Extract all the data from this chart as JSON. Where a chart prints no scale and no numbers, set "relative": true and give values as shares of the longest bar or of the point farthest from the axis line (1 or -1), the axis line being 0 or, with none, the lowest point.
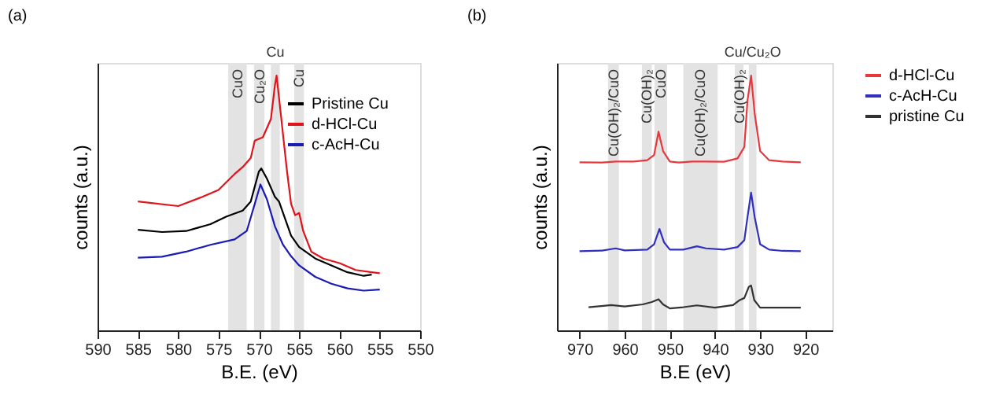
{
  "chart_data": [
    {
      "type": "line",
      "title": "(a)",
      "xlabel": "B.E. (eV)",
      "ylabel": "counts (a.u.)",
      "relative": true,
      "xlim": [
        590,
        550
      ],
      "xticks": [
        590,
        585,
        580,
        575,
        570,
        565,
        560,
        555,
        550
      ],
      "legend": "top right",
      "bands": [
        {
          "axis": "x",
          "from": 573.8,
          "to": 571.5,
          "label": "CuO",
          "color": "#e3e3e3"
        },
        {
          "axis": "x",
          "from": 570.6,
          "to": 569.3,
          "label": "Cu₂O",
          "color": "#e3e3e3"
        },
        {
          "axis": "x",
          "from": 568.5,
          "to": 567.4,
          "label": "Cu",
          "color": "#e3e3e3"
        },
        {
          "axis": "x",
          "from": 565.6,
          "to": 564.4,
          "label": "Cu",
          "color": "#e3e3e3"
        }
      ],
      "series": [
        {
          "name": "Pristine Cu",
          "color": "#000000",
          "x": [
            585,
            582,
            579,
            576,
            574,
            572,
            571,
            570,
            569.7,
            569,
            568,
            567.5,
            567,
            566,
            565,
            563,
            561,
            559,
            557,
            556
          ],
          "values": [
            0.395,
            0.386,
            0.39,
            0.417,
            0.447,
            0.47,
            0.506,
            0.623,
            0.636,
            0.596,
            0.524,
            0.506,
            0.461,
            0.372,
            0.327,
            0.282,
            0.255,
            0.228,
            0.214,
            0.219
          ]
        },
        {
          "name": "d-HCl-Cu",
          "color": "#e0141b",
          "x": [
            585,
            580,
            577,
            575,
            573,
            572,
            571,
            570.5,
            569.5,
            568.5,
            568,
            567.8,
            567.3,
            566.5,
            566,
            565.5,
            565,
            564.5,
            563.5,
            562,
            560,
            558,
            556,
            555
          ],
          "values": [
            0.506,
            0.488,
            0.524,
            0.551,
            0.614,
            0.641,
            0.677,
            0.745,
            0.758,
            0.83,
            0.964,
            1.0,
            0.856,
            0.623,
            0.497,
            0.452,
            0.461,
            0.39,
            0.309,
            0.282,
            0.264,
            0.237,
            0.228,
            0.224
          ]
        },
        {
          "name": "c-AcH-Cu",
          "color": "#1a1ab4",
          "x": [
            585,
            582,
            579,
            576,
            573,
            571.5,
            570.5,
            569.8,
            569,
            568,
            567,
            566,
            565,
            563,
            561,
            559,
            557,
            555
          ],
          "values": [
            0.285,
            0.289,
            0.309,
            0.336,
            0.357,
            0.39,
            0.497,
            0.573,
            0.515,
            0.408,
            0.336,
            0.291,
            0.255,
            0.21,
            0.183,
            0.165,
            0.156,
            0.16
          ]
        }
      ]
    },
    {
      "type": "line",
      "title": "(b)",
      "xlabel": "B.E (eV)",
      "ylabel": "counts (a.u.)",
      "relative": true,
      "xlim": [
        975,
        914
      ],
      "xticks": [
        970,
        960,
        950,
        940,
        930,
        920
      ],
      "legend": "right",
      "bands": [
        {
          "axis": "x",
          "from": 963.7,
          "to": 961.3,
          "label": "Cu(OH)₂/CuO",
          "color": "#e3e3e3"
        },
        {
          "axis": "x",
          "from": 956.2,
          "to": 954.0,
          "label": "Cu(OH)₂",
          "color": "#e3e3e3"
        },
        {
          "axis": "x",
          "from": 953.4,
          "to": 950.6,
          "label": "CuO",
          "color": "#e3e3e3"
        },
        {
          "axis": "x",
          "from": 947.0,
          "to": 939.4,
          "label": "Cu(OH)₂/CuO",
          "color": "#e3e3e3"
        },
        {
          "axis": "x",
          "from": 935.6,
          "to": 933.7,
          "label": "Cu(OH)₂",
          "color": "#e3e3e3"
        },
        {
          "axis": "x",
          "from": 932.5,
          "to": 930.8,
          "label": "Cu/Cu₂O",
          "color": "#e3e3e3"
        }
      ],
      "series": [
        {
          "name": "d-HCl-Cu",
          "color": "#e8383d",
          "x": [
            970,
            965,
            962,
            958,
            955,
            953.5,
            952.5,
            951.5,
            950,
            948,
            945,
            942,
            938,
            935,
            933.5,
            932.8,
            932,
            931.2,
            930,
            928,
            925,
            921
          ],
          "values": [
            0.66,
            0.659,
            0.663,
            0.663,
            0.668,
            0.688,
            0.78,
            0.704,
            0.663,
            0.659,
            0.663,
            0.663,
            0.662,
            0.675,
            0.72,
            0.902,
            1.0,
            0.85,
            0.704,
            0.668,
            0.663,
            0.66
          ]
        },
        {
          "name": "c-AcH-Cu",
          "color": "#3030c0",
          "x": [
            970,
            965,
            962,
            960,
            955,
            953.5,
            952.3,
            951.3,
            950,
            947,
            944,
            942,
            938,
            935,
            933.5,
            932.8,
            932,
            931.2,
            930,
            928,
            925,
            921
          ],
          "values": [
            0.311,
            0.313,
            0.322,
            0.314,
            0.317,
            0.338,
            0.398,
            0.346,
            0.317,
            0.317,
            0.33,
            0.322,
            0.317,
            0.327,
            0.354,
            0.444,
            0.541,
            0.444,
            0.338,
            0.317,
            0.312,
            0.311
          ]
        },
        {
          "name": "pristine Cu",
          "color": "#333333",
          "x": [
            968,
            963,
            960,
            956,
            954,
            952.5,
            951.5,
            950,
            947,
            944,
            940,
            936,
            934.5,
            933.5,
            932.5,
            932,
            931.3,
            930,
            925,
            921
          ],
          "values": [
            0.091,
            0.099,
            0.094,
            0.102,
            0.111,
            0.122,
            0.102,
            0.086,
            0.091,
            0.098,
            0.089,
            0.099,
            0.119,
            0.127,
            0.171,
            0.176,
            0.119,
            0.089,
            0.089,
            0.089
          ]
        }
      ]
    }
  ]
}
